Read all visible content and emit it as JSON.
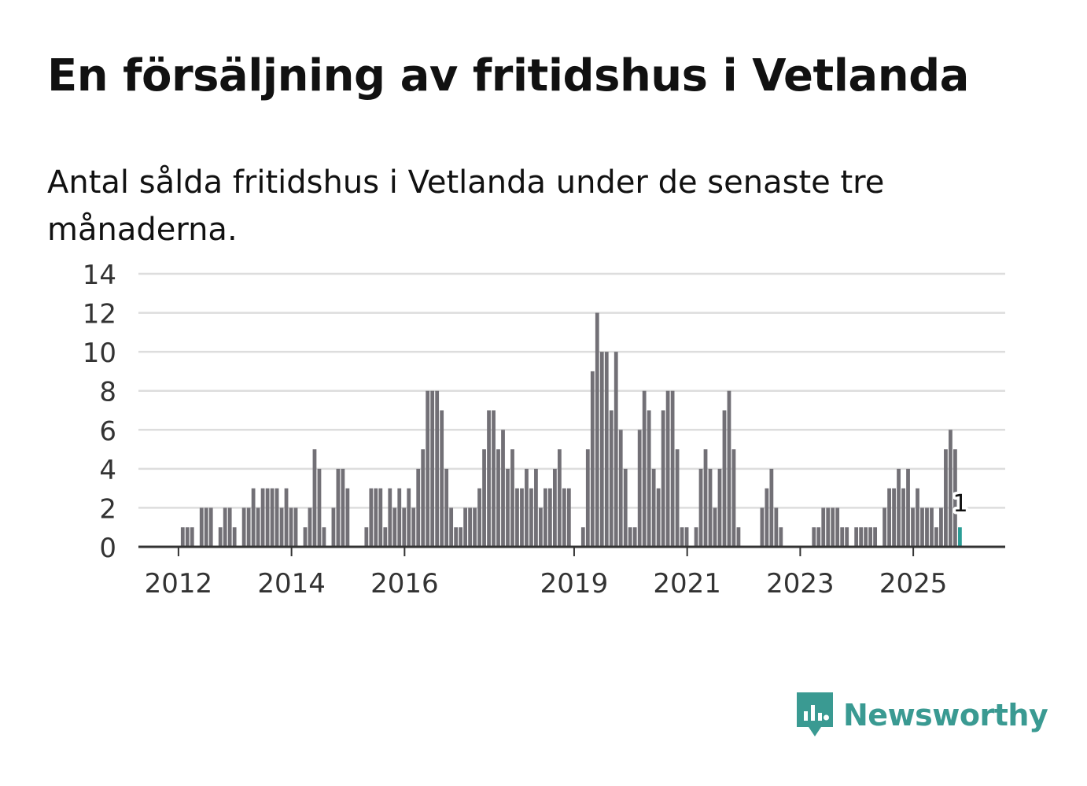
{
  "title": "En försäljning av fritidshus i Vetlanda",
  "subtitle": "Antal sålda fritidshus i Vetlanda under de senaste tre månaderna.",
  "brand": {
    "name": "Newsworthy"
  },
  "colors": {
    "bar": "#727076",
    "highlight": "#2a9d96",
    "grid": "#dddddd",
    "axis": "#333333"
  },
  "chart_data": {
    "type": "bar",
    "title": "En försäljning av fritidshus i Vetlanda",
    "subtitle": "Antal sålda fritidshus i Vetlanda under de senaste tre månaderna.",
    "xlabel": "",
    "ylabel": "",
    "ylim": [
      0,
      14
    ],
    "yticks": [
      "0",
      "2",
      "4",
      "6",
      "8",
      "10",
      "12",
      "14"
    ],
    "grid": true,
    "period_start": "2011-05",
    "xtick_labels": [
      {
        "label": "2012",
        "month_index": 8
      },
      {
        "label": "2014",
        "month_index": 32
      },
      {
        "label": "2016",
        "month_index": 56
      },
      {
        "label": "2019",
        "month_index": 92
      },
      {
        "label": "2021",
        "month_index": 116
      },
      {
        "label": "2023",
        "month_index": 140
      },
      {
        "label": "2025",
        "month_index": 164
      }
    ],
    "values": [
      0,
      0,
      0,
      0,
      0,
      0,
      0,
      0,
      0,
      1,
      1,
      1,
      0,
      2,
      2,
      2,
      0,
      1,
      2,
      2,
      1,
      0,
      2,
      2,
      3,
      2,
      3,
      3,
      3,
      3,
      2,
      3,
      2,
      2,
      0,
      1,
      2,
      5,
      4,
      1,
      0,
      2,
      4,
      4,
      3,
      0,
      0,
      0,
      1,
      3,
      3,
      3,
      1,
      3,
      2,
      3,
      2,
      3,
      2,
      4,
      5,
      8,
      8,
      8,
      7,
      4,
      2,
      1,
      1,
      2,
      2,
      2,
      3,
      5,
      7,
      7,
      5,
      6,
      4,
      5,
      3,
      3,
      4,
      3,
      4,
      2,
      3,
      3,
      4,
      5,
      3,
      3,
      0,
      0,
      1,
      5,
      9,
      12,
      10,
      10,
      7,
      10,
      6,
      4,
      1,
      1,
      6,
      8,
      7,
      4,
      3,
      7,
      8,
      8,
      5,
      1,
      1,
      0,
      1,
      4,
      5,
      4,
      2,
      4,
      7,
      8,
      5,
      1,
      0,
      0,
      0,
      0,
      2,
      3,
      4,
      2,
      1,
      0,
      0,
      0,
      0,
      0,
      0,
      1,
      1,
      2,
      2,
      2,
      2,
      1,
      1,
      0,
      1,
      1,
      1,
      1,
      1,
      0,
      2,
      3,
      3,
      4,
      3,
      4,
      2,
      3,
      2,
      2,
      2,
      1,
      2,
      5,
      6,
      5,
      1
    ],
    "highlight": {
      "label": "1",
      "value": 1,
      "position": "last bar"
    }
  }
}
